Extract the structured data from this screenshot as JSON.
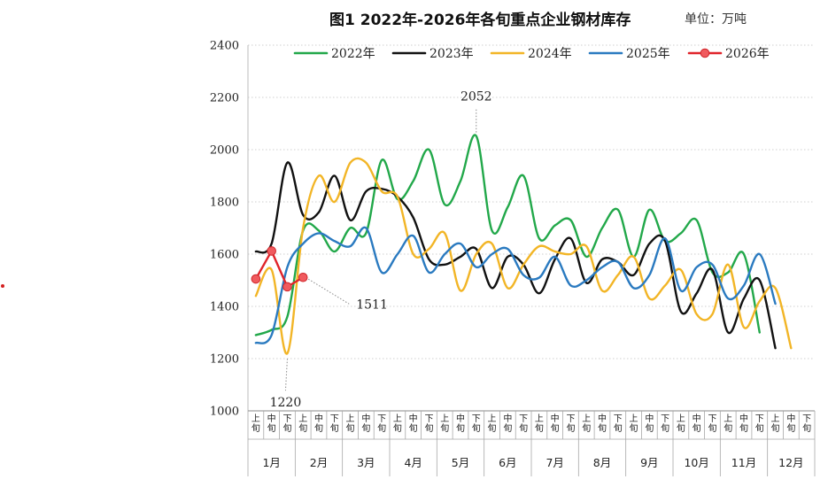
{
  "title": "图1 2022年-2026年各旬重点企业钢材库存",
  "unit": "单位：万吨",
  "chart_data": {
    "type": "line",
    "ylim": [
      1000,
      2400
    ],
    "yticks": [
      1000,
      1200,
      1400,
      1600,
      1800,
      2000,
      2200,
      2400
    ],
    "grid": true,
    "legend_position": "top",
    "months": [
      "1月",
      "2月",
      "3月",
      "4月",
      "5月",
      "6月",
      "7月",
      "8月",
      "9月",
      "10月",
      "11月",
      "12月"
    ],
    "sub_labels": [
      "上旬",
      "中旬",
      "下旬"
    ],
    "series": [
      {
        "name": "2022年",
        "color": "#22a84a",
        "markers": false,
        "values": [
          1290,
          1310,
          1360,
          1690,
          1690,
          1610,
          1700,
          1680,
          1960,
          1810,
          1880,
          2000,
          1790,
          1880,
          2052,
          1690,
          1780,
          1900,
          1660,
          1710,
          1730,
          1590,
          1700,
          1770,
          1590,
          1770,
          1650,
          1680,
          1730,
          1530,
          1530,
          1600,
          1300
        ]
      },
      {
        "name": "2023年",
        "color": "#111111",
        "markers": false,
        "values": [
          1610,
          1640,
          1950,
          1750,
          1760,
          1900,
          1730,
          1840,
          1850,
          1820,
          1740,
          1580,
          1560,
          1590,
          1620,
          1470,
          1590,
          1560,
          1450,
          1580,
          1660,
          1490,
          1580,
          1570,
          1520,
          1640,
          1650,
          1380,
          1450,
          1540,
          1300,
          1430,
          1500,
          1240
        ]
      },
      {
        "name": "2024年",
        "color": "#f2b526",
        "markers": false,
        "values": [
          1440,
          1540,
          1220,
          1700,
          1900,
          1800,
          1950,
          1950,
          1840,
          1820,
          1600,
          1620,
          1680,
          1460,
          1600,
          1640,
          1470,
          1560,
          1630,
          1610,
          1600,
          1630,
          1460,
          1520,
          1590,
          1430,
          1480,
          1540,
          1370,
          1370,
          1560,
          1320,
          1420,
          1470,
          1240
        ]
      },
      {
        "name": "2025年",
        "color": "#2a7ac0",
        "markers": false,
        "values": [
          1260,
          1290,
          1550,
          1640,
          1680,
          1650,
          1630,
          1700,
          1530,
          1600,
          1670,
          1530,
          1600,
          1640,
          1550,
          1600,
          1620,
          1520,
          1510,
          1590,
          1480,
          1500,
          1550,
          1570,
          1470,
          1520,
          1660,
          1460,
          1550,
          1560,
          1430,
          1480,
          1600,
          1410
        ]
      },
      {
        "name": "2026年",
        "color": "#e0242a",
        "markers": true,
        "values": [
          1505,
          1612,
          1475,
          1511
        ]
      }
    ],
    "annotations": [
      {
        "text": "2052",
        "series": "2022年",
        "index": 14
      },
      {
        "text": "1511",
        "series": "2026年",
        "index": 3
      },
      {
        "text": "1220",
        "series": "2024年",
        "index": 2
      }
    ]
  }
}
